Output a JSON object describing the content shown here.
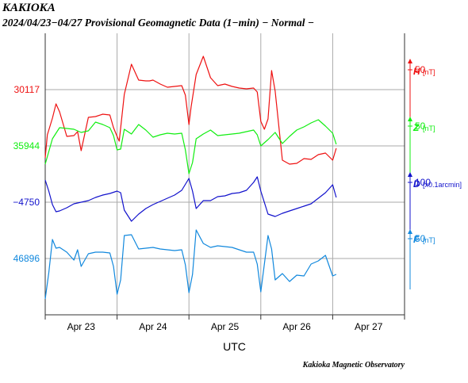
{
  "header": {
    "station": "KAKIOKA",
    "subtitle": "2024/04/23−04/27  Provisional Geomagnetic Data (1−min)  − Normal −"
  },
  "footer": {
    "credit": "Kakioka Magnetic Observatory"
  },
  "chart_data": {
    "type": "line",
    "title": "Provisional Geomagnetic Data (1-min)",
    "xlabel": "UTC",
    "x_ticks": [
      "Apr 23",
      "Apr 24",
      "Apr 25",
      "Apr 26",
      "Apr 27"
    ],
    "x_range_days": [
      0,
      5
    ],
    "grid": true,
    "series": [
      {
        "name": "H",
        "unit": "[nT]",
        "color": "#ee1111",
        "left_label": "30117",
        "right_tick_label": "50",
        "right_tick_offset": 50,
        "baseline": 30117,
        "scale_per_px": 2,
        "x_days": [
          0.0,
          0.03,
          0.1,
          0.15,
          0.2,
          0.3,
          0.4,
          0.45,
          0.5,
          0.6,
          0.7,
          0.8,
          0.9,
          0.95,
          1.0,
          1.03,
          1.1,
          1.2,
          1.3,
          1.4,
          1.45,
          1.5,
          1.6,
          1.7,
          1.8,
          1.9,
          1.95,
          2.0,
          2.03,
          2.1,
          2.2,
          2.3,
          2.4,
          2.5,
          2.6,
          2.7,
          2.8,
          2.9,
          2.95,
          3.0,
          3.05,
          3.1,
          3.15,
          3.2,
          3.3,
          3.4,
          3.5,
          3.6,
          3.7,
          3.8,
          3.9,
          4.0,
          4.05
        ],
        "values": [
          29945,
          30003,
          30045,
          30081,
          30061,
          29999,
          30001,
          30011,
          29963,
          30047,
          30049,
          30055,
          30053,
          30021,
          29999,
          29987,
          30105,
          30181,
          30141,
          30139,
          30139,
          30141,
          30131,
          30123,
          30125,
          30127,
          30103,
          30029,
          30073,
          30155,
          30201,
          30147,
          30127,
          30131,
          30125,
          30121,
          30119,
          30121,
          30111,
          30037,
          30017,
          30043,
          30165,
          30113,
          29939,
          29929,
          29931,
          29943,
          29941,
          29953,
          29957,
          29939,
          29969
        ]
      },
      {
        "name": "Z",
        "unit": "[nT]",
        "color": "#11ee11",
        "left_label": "35944",
        "right_tick_label": "50",
        "right_tick_offset": 50,
        "baseline": 35944,
        "scale_per_px": 2,
        "x_days": [
          0.0,
          0.1,
          0.2,
          0.3,
          0.4,
          0.5,
          0.6,
          0.7,
          0.8,
          0.9,
          0.95,
          1.0,
          1.05,
          1.1,
          1.2,
          1.3,
          1.4,
          1.5,
          1.6,
          1.7,
          1.8,
          1.9,
          1.95,
          2.0,
          2.05,
          2.1,
          2.2,
          2.3,
          2.4,
          2.5,
          2.6,
          2.7,
          2.8,
          2.9,
          2.95,
          3.0,
          3.1,
          3.2,
          3.3,
          3.4,
          3.5,
          3.6,
          3.7,
          3.8,
          3.9,
          4.0,
          4.05
        ],
        "values": [
          35898,
          35962,
          35990,
          35988,
          35986,
          35978,
          35982,
          36004,
          35998,
          35990,
          35970,
          35934,
          35936,
          35986,
          35974,
          35998,
          35984,
          35966,
          35972,
          35976,
          35974,
          35976,
          35934,
          35874,
          35902,
          35962,
          35974,
          35984,
          35970,
          35972,
          35974,
          35976,
          35980,
          35984,
          35972,
          35944,
          35960,
          35978,
          35950,
          35968,
          35984,
          35992,
          36002,
          36010,
          35994,
          35976,
          35948
        ]
      },
      {
        "name": "D",
        "unit": "[x0.1arcmin]",
        "color": "#1111cc",
        "left_label": "−4750",
        "right_tick_label": "100",
        "right_tick_offset": 100,
        "baseline": -4750,
        "scale_per_px": 4,
        "x_days": [
          0.0,
          0.05,
          0.1,
          0.15,
          0.2,
          0.3,
          0.4,
          0.5,
          0.6,
          0.7,
          0.8,
          0.9,
          1.0,
          1.05,
          1.1,
          1.2,
          1.3,
          1.4,
          1.5,
          1.6,
          1.7,
          1.8,
          1.9,
          2.0,
          2.05,
          2.1,
          2.2,
          2.3,
          2.4,
          2.5,
          2.6,
          2.7,
          2.8,
          2.9,
          2.95,
          3.0,
          3.1,
          3.2,
          3.3,
          3.4,
          3.5,
          3.6,
          3.7,
          3.8,
          3.9,
          4.0,
          4.05
        ],
        "values": [
          -4638,
          -4694,
          -4762,
          -4798,
          -4794,
          -4778,
          -4758,
          -4750,
          -4742,
          -4726,
          -4714,
          -4706,
          -4694,
          -4702,
          -4790,
          -4846,
          -4810,
          -4782,
          -4762,
          -4746,
          -4730,
          -4714,
          -4690,
          -4630,
          -4694,
          -4782,
          -4742,
          -4742,
          -4722,
          -4718,
          -4706,
          -4702,
          -4690,
          -4650,
          -4622,
          -4694,
          -4810,
          -4822,
          -4806,
          -4794,
          -4782,
          -4770,
          -4758,
          -4730,
          -4702,
          -4662,
          -4726
        ]
      },
      {
        "name": "F",
        "unit": "[nT]",
        "color": "#1188dd",
        "left_label": "46896",
        "right_tick_label": "50",
        "right_tick_offset": 50,
        "baseline": 46896,
        "scale_per_px": 2,
        "x_days": [
          0.0,
          0.05,
          0.1,
          0.15,
          0.2,
          0.3,
          0.4,
          0.45,
          0.5,
          0.6,
          0.7,
          0.8,
          0.9,
          0.95,
          1.0,
          1.05,
          1.1,
          1.2,
          1.3,
          1.4,
          1.5,
          1.6,
          1.7,
          1.8,
          1.9,
          1.95,
          2.0,
          2.05,
          2.1,
          2.2,
          2.3,
          2.4,
          2.5,
          2.6,
          2.7,
          2.8,
          2.9,
          2.95,
          3.0,
          3.1,
          3.15,
          3.2,
          3.3,
          3.4,
          3.5,
          3.6,
          3.7,
          3.8,
          3.9,
          4.0,
          4.05
        ],
        "values": [
          46794,
          46860,
          46944,
          46922,
          46924,
          46912,
          46892,
          46918,
          46876,
          46908,
          46912,
          46912,
          46910,
          46876,
          46806,
          46842,
          46954,
          46956,
          46920,
          46922,
          46924,
          46920,
          46918,
          46916,
          46918,
          46880,
          46810,
          46856,
          46968,
          46934,
          46924,
          46928,
          46926,
          46924,
          46918,
          46912,
          46912,
          46882,
          46812,
          46954,
          46920,
          46842,
          46858,
          46838,
          46854,
          46852,
          46882,
          46890,
          46904,
          46852,
          46856
        ]
      }
    ]
  }
}
